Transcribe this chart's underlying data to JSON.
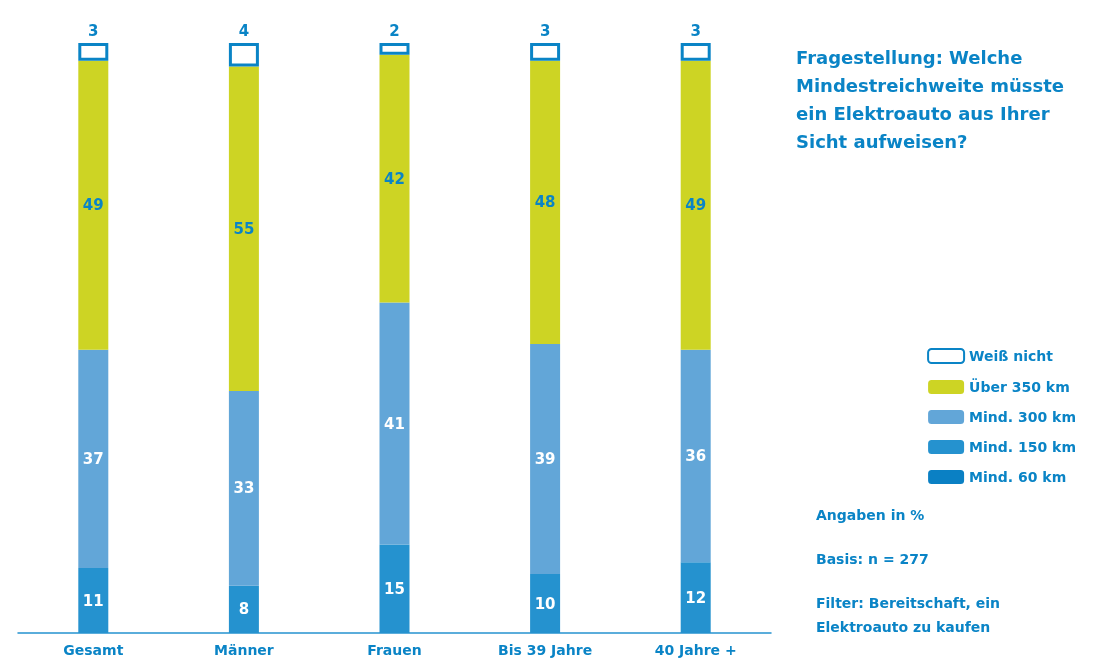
{
  "chart_data": {
    "type": "bar",
    "stacked": true,
    "title": "Fragestellung: Welche Mindestreichweite müsste ein Elektroauto aus Ihrer Sicht aufweisen?",
    "categories": [
      "Gesamt",
      "Männer",
      "Frauen",
      "Bis 39 Jahre",
      "40 Jahre +"
    ],
    "series": [
      {
        "name": "Mind. 60 km",
        "color": "#0a80c4",
        "values": [
          null,
          null,
          null,
          null,
          null
        ]
      },
      {
        "name": "Mind. 150 km",
        "color": "#2592cf",
        "values": [
          11,
          8,
          15,
          10,
          12
        ]
      },
      {
        "name": "Mind. 300 km",
        "color": "#62a6d8",
        "values": [
          37,
          33,
          41,
          39,
          36
        ]
      },
      {
        "name": "Über 350 km",
        "color": "#cdd424",
        "values": [
          49,
          55,
          42,
          48,
          49
        ]
      },
      {
        "name": "Weiß nicht",
        "color": "#ffffff",
        "values": [
          3,
          4,
          2,
          3,
          3
        ]
      }
    ],
    "data_labels": true,
    "legend": "right",
    "annotations": [
      "Angaben in %",
      "Basis: n = 277",
      "Filter: Bereitschaft, ein Elektroauto zu kaufen"
    ]
  }
}
